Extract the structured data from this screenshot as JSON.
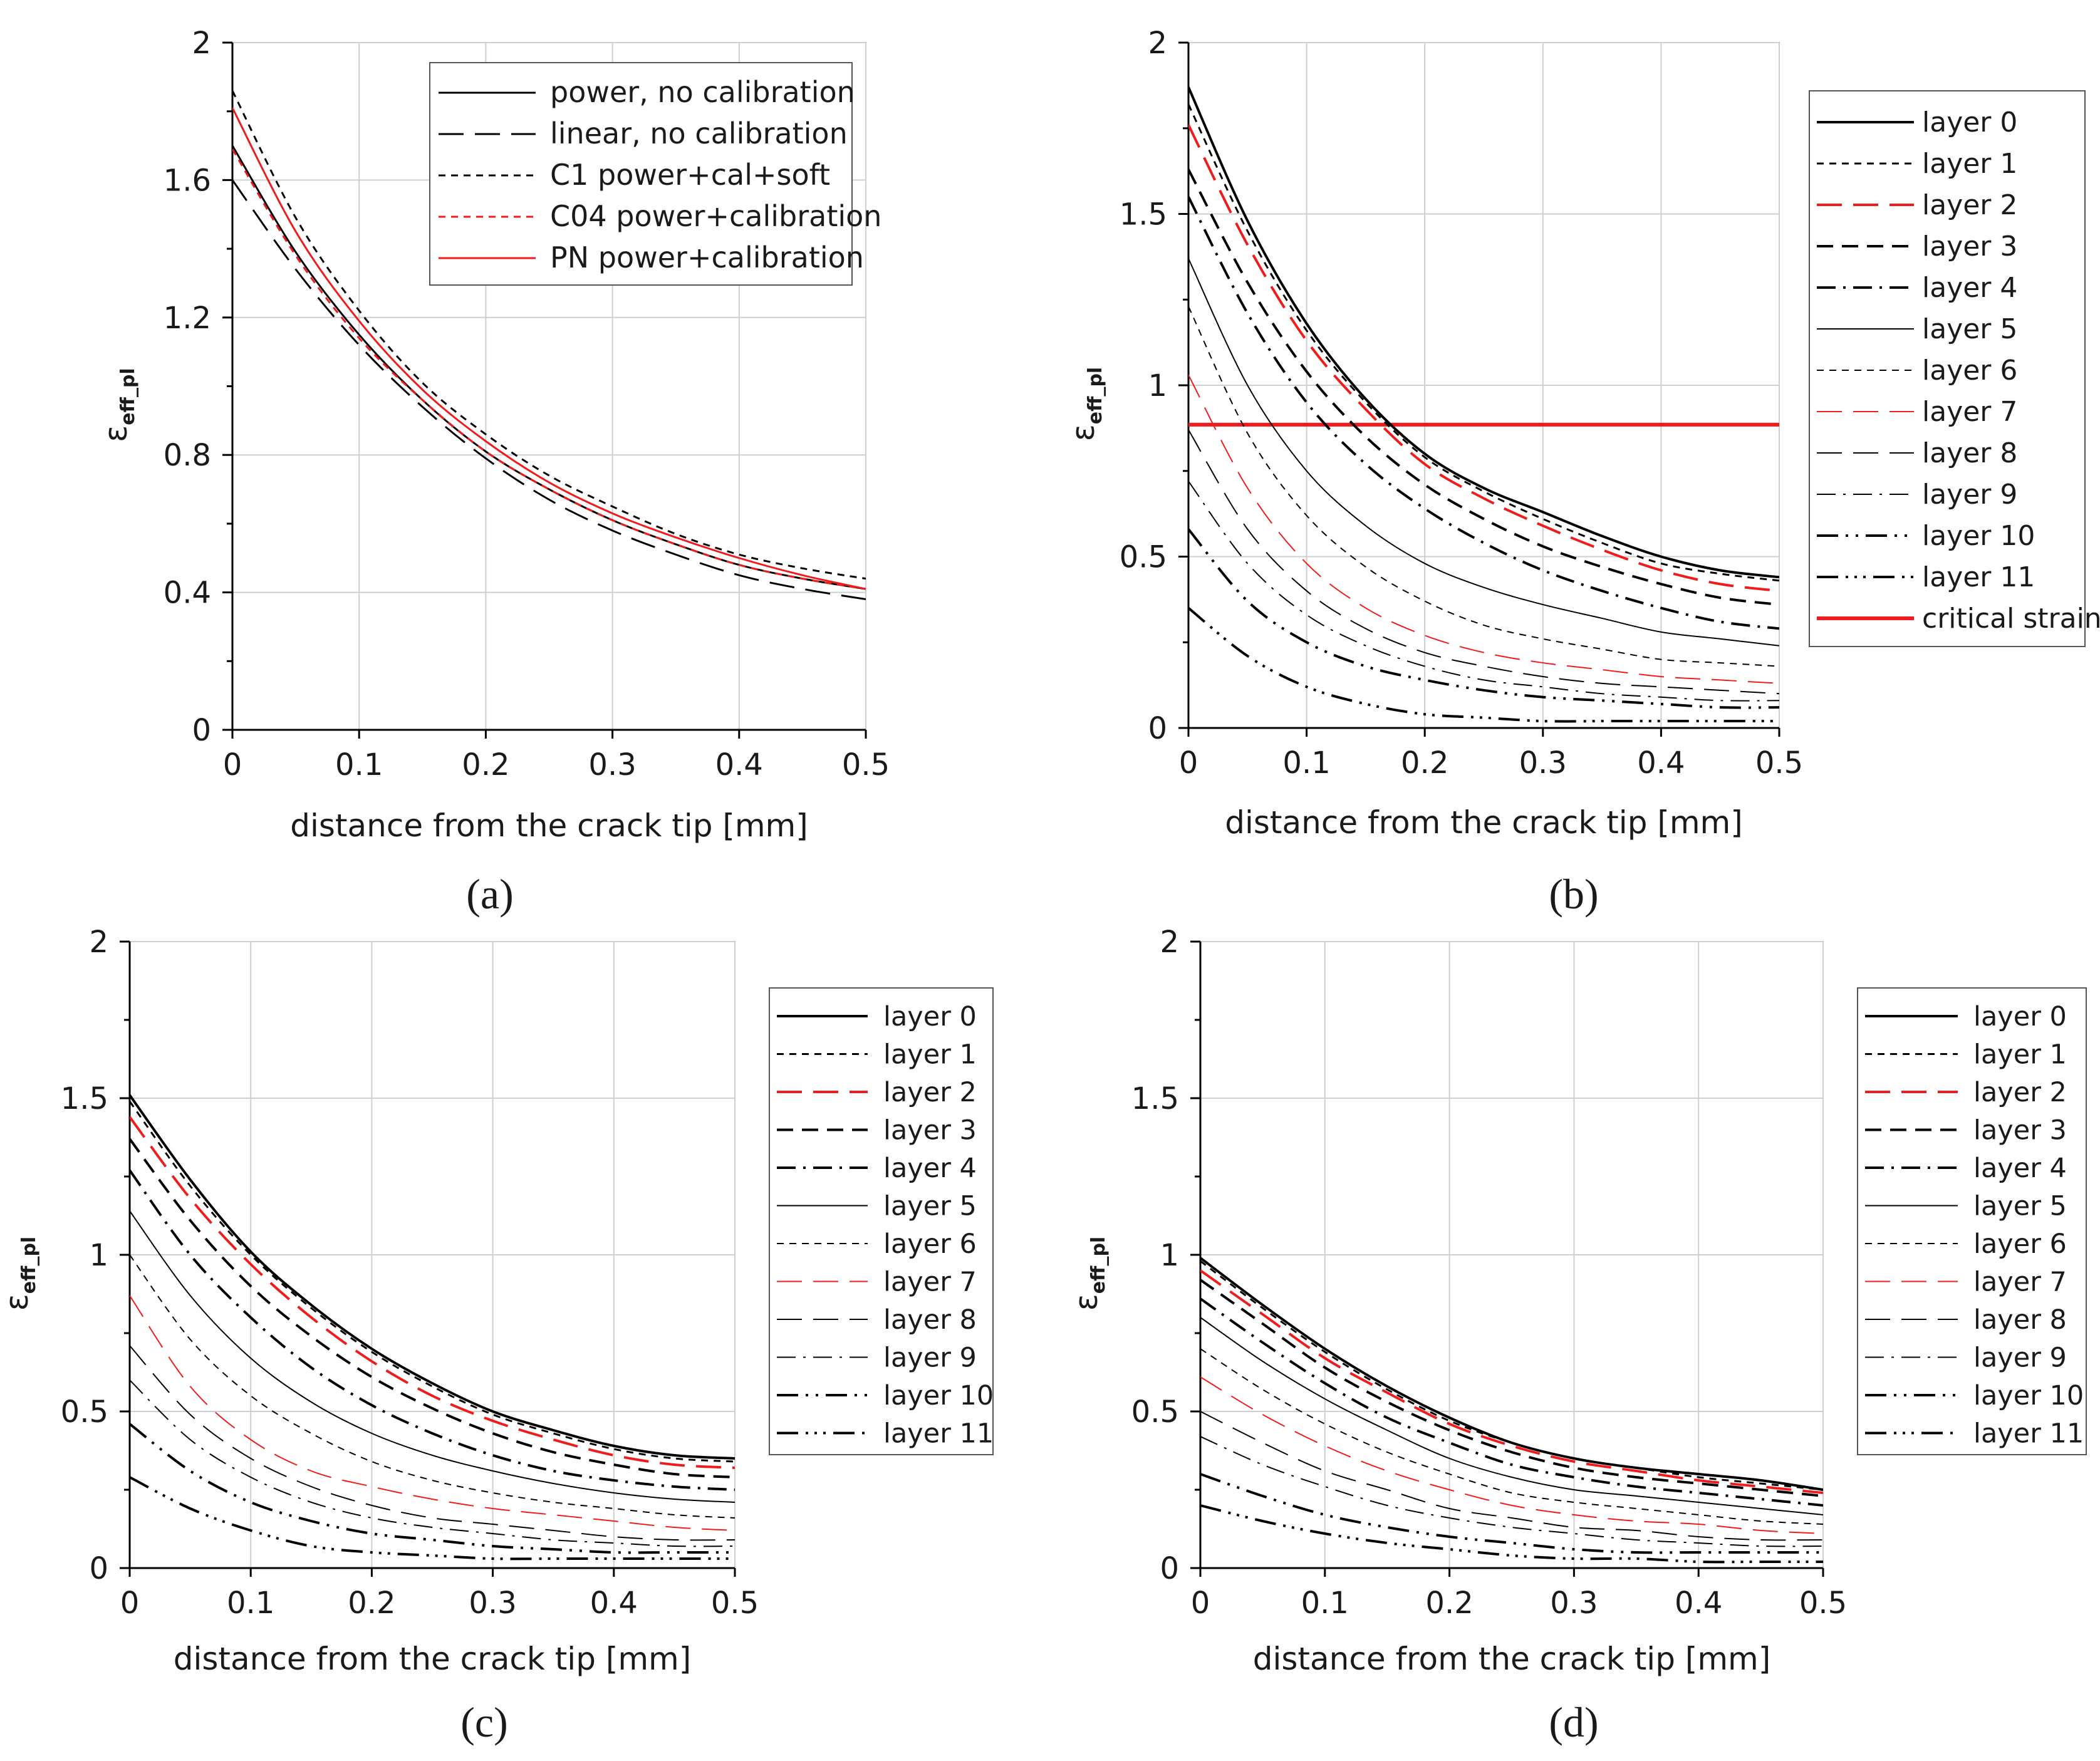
{
  "figure_title": "",
  "colors": {
    "black": "#000000",
    "red": "#ee1c1c",
    "grid": "#cfcfcf"
  },
  "chart_data": [
    {
      "panel": "a",
      "panel_label": "(a)",
      "type": "line",
      "xlabel": "distance from the crack tip [mm]",
      "ylabel_main": "ε",
      "ylabel_sub": "eff_pl",
      "xlim": [
        0,
        0.5
      ],
      "ylim": [
        0,
        2
      ],
      "xticks": [
        0,
        0.1,
        0.2,
        0.3,
        0.4,
        0.5
      ],
      "xtick_labels": [
        "0",
        "0.1",
        "0.2",
        "0.3",
        "0.4",
        "0.5"
      ],
      "yticks": [
        0,
        0.4,
        0.8,
        1.2,
        1.6,
        2
      ],
      "ytick_labels": [
        "0",
        "0.4",
        "0.8",
        "1.2",
        "1.6",
        "2"
      ],
      "legend_position": "top-right-inside",
      "x": [
        0,
        0.05,
        0.1,
        0.15,
        0.2,
        0.25,
        0.3,
        0.35,
        0.4,
        0.45,
        0.5
      ],
      "series": [
        {
          "name": "power, no calibration",
          "color": "#000000",
          "style": "solid",
          "weight": 3,
          "values": [
            1.7,
            1.39,
            1.15,
            0.96,
            0.81,
            0.7,
            0.61,
            0.54,
            0.48,
            0.44,
            0.41
          ]
        },
        {
          "name": "linear, no calibration",
          "color": "#000000",
          "style": "longdash",
          "weight": 3,
          "values": [
            1.6,
            1.34,
            1.12,
            0.94,
            0.79,
            0.67,
            0.58,
            0.51,
            0.45,
            0.41,
            0.38
          ]
        },
        {
          "name": "C1 power+cal+soft",
          "color": "#000000",
          "style": "shortdash",
          "weight": 3,
          "values": [
            1.86,
            1.49,
            1.22,
            1.01,
            0.86,
            0.74,
            0.65,
            0.57,
            0.51,
            0.47,
            0.44
          ]
        },
        {
          "name": "C04 power+calibration",
          "color": "#ee1c1c",
          "style": "shortdash",
          "weight": 3,
          "values": [
            1.69,
            1.38,
            1.14,
            0.96,
            0.81,
            0.7,
            0.61,
            0.54,
            0.48,
            0.44,
            0.41
          ]
        },
        {
          "name": "PN power+calibration",
          "color": "#ee1c1c",
          "style": "solid",
          "weight": 3,
          "values": [
            1.81,
            1.45,
            1.19,
            0.99,
            0.84,
            0.72,
            0.63,
            0.56,
            0.5,
            0.45,
            0.41
          ]
        }
      ]
    },
    {
      "panel": "b",
      "panel_label": "(b)",
      "type": "line",
      "xlabel": "distance from the crack tip [mm]",
      "ylabel_main": "ε",
      "ylabel_sub": "eff_pl",
      "xlim": [
        0,
        0.5
      ],
      "ylim": [
        0,
        2
      ],
      "xticks": [
        0,
        0.1,
        0.2,
        0.3,
        0.4,
        0.5
      ],
      "xtick_labels": [
        "0",
        "0.1",
        "0.2",
        "0.3",
        "0.4",
        "0.5"
      ],
      "yticks": [
        0,
        0.5,
        1,
        1.5,
        2
      ],
      "ytick_labels": [
        "0",
        "0.5",
        "1",
        "1.5",
        "2"
      ],
      "legend_position": "right-outside",
      "x": [
        0,
        0.05,
        0.1,
        0.15,
        0.2,
        0.25,
        0.3,
        0.35,
        0.4,
        0.45,
        0.5
      ],
      "series": [
        {
          "name": "layer 0",
          "color": "#000000",
          "style": "solid",
          "weight": 4,
          "values": [
            1.87,
            1.48,
            1.18,
            0.96,
            0.8,
            0.7,
            0.63,
            0.56,
            0.5,
            0.46,
            0.44
          ]
        },
        {
          "name": "layer 1",
          "color": "#000000",
          "style": "shortdash",
          "weight": 3,
          "values": [
            1.82,
            1.45,
            1.16,
            0.95,
            0.79,
            0.69,
            0.61,
            0.54,
            0.48,
            0.45,
            0.43
          ]
        },
        {
          "name": "layer 2",
          "color": "#ee1c1c",
          "style": "longdash",
          "weight": 4,
          "values": [
            1.76,
            1.41,
            1.13,
            0.93,
            0.77,
            0.67,
            0.59,
            0.52,
            0.46,
            0.42,
            0.4
          ]
        },
        {
          "name": "layer 3",
          "color": "#000000",
          "style": "dash",
          "weight": 4,
          "values": [
            1.63,
            1.3,
            1.04,
            0.85,
            0.71,
            0.61,
            0.53,
            0.47,
            0.42,
            0.38,
            0.36
          ]
        },
        {
          "name": "layer 4",
          "color": "#000000",
          "style": "dashdot",
          "weight": 4,
          "values": [
            1.55,
            1.21,
            0.95,
            0.77,
            0.64,
            0.54,
            0.46,
            0.4,
            0.35,
            0.31,
            0.29
          ]
        },
        {
          "name": "layer 5",
          "color": "#000000",
          "style": "solid",
          "weight": 2,
          "values": [
            1.37,
            1.0,
            0.75,
            0.59,
            0.48,
            0.41,
            0.36,
            0.32,
            0.28,
            0.26,
            0.24
          ]
        },
        {
          "name": "layer 6",
          "color": "#000000",
          "style": "shortdash",
          "weight": 2,
          "values": [
            1.23,
            0.86,
            0.62,
            0.47,
            0.37,
            0.3,
            0.26,
            0.23,
            0.2,
            0.19,
            0.18
          ]
        },
        {
          "name": "layer 7",
          "color": "#ee1c1c",
          "style": "longdash",
          "weight": 2,
          "values": [
            1.03,
            0.7,
            0.48,
            0.35,
            0.27,
            0.22,
            0.19,
            0.17,
            0.15,
            0.14,
            0.13
          ]
        },
        {
          "name": "layer 8",
          "color": "#000000",
          "style": "longdash",
          "weight": 2,
          "values": [
            0.87,
            0.58,
            0.4,
            0.29,
            0.22,
            0.18,
            0.15,
            0.13,
            0.12,
            0.11,
            0.1
          ]
        },
        {
          "name": "layer 9",
          "color": "#000000",
          "style": "dashdot",
          "weight": 2,
          "values": [
            0.72,
            0.48,
            0.33,
            0.24,
            0.18,
            0.14,
            0.12,
            0.1,
            0.09,
            0.08,
            0.08
          ]
        },
        {
          "name": "layer 10",
          "color": "#000000",
          "style": "dashdotdot",
          "weight": 4,
          "values": [
            0.58,
            0.37,
            0.25,
            0.18,
            0.14,
            0.11,
            0.09,
            0.08,
            0.07,
            0.06,
            0.06
          ]
        },
        {
          "name": "layer 11",
          "color": "#000000",
          "style": "dashdotdotdot",
          "weight": 4,
          "values": [
            0.35,
            0.21,
            0.12,
            0.07,
            0.04,
            0.03,
            0.02,
            0.02,
            0.02,
            0.02,
            0.02
          ]
        }
      ],
      "reference_line": {
        "name": "critical strain",
        "color": "#ee1c1c",
        "value": 0.885
      }
    },
    {
      "panel": "c",
      "panel_label": "(c)",
      "type": "line",
      "xlabel": "distance from the crack tip [mm]",
      "ylabel_main": "ε",
      "ylabel_sub": "eff_pl",
      "xlim": [
        0,
        0.5
      ],
      "ylim": [
        0,
        2
      ],
      "xticks": [
        0,
        0.1,
        0.2,
        0.3,
        0.4,
        0.5
      ],
      "xtick_labels": [
        "0",
        "0.1",
        "0.2",
        "0.3",
        "0.4",
        "0.5"
      ],
      "yticks": [
        0,
        0.5,
        1,
        1.5,
        2
      ],
      "ytick_labels": [
        "0",
        "0.5",
        "1",
        "1.5",
        "2"
      ],
      "legend_position": "right-outside",
      "x": [
        0,
        0.05,
        0.1,
        0.15,
        0.2,
        0.25,
        0.3,
        0.35,
        0.4,
        0.45,
        0.5
      ],
      "series": [
        {
          "name": "layer 0",
          "color": "#000000",
          "style": "solid",
          "weight": 4,
          "values": [
            1.51,
            1.24,
            1.01,
            0.84,
            0.7,
            0.59,
            0.5,
            0.44,
            0.39,
            0.36,
            0.35
          ]
        },
        {
          "name": "layer 1",
          "color": "#000000",
          "style": "shortdash",
          "weight": 3,
          "values": [
            1.49,
            1.22,
            1.0,
            0.83,
            0.69,
            0.58,
            0.49,
            0.43,
            0.38,
            0.35,
            0.34
          ]
        },
        {
          "name": "layer 2",
          "color": "#ee1c1c",
          "style": "longdash",
          "weight": 4,
          "values": [
            1.44,
            1.18,
            0.97,
            0.8,
            0.66,
            0.55,
            0.47,
            0.41,
            0.36,
            0.33,
            0.32
          ]
        },
        {
          "name": "layer 3",
          "color": "#000000",
          "style": "dash",
          "weight": 4,
          "values": [
            1.37,
            1.11,
            0.9,
            0.74,
            0.61,
            0.51,
            0.43,
            0.37,
            0.33,
            0.3,
            0.29
          ]
        },
        {
          "name": "layer 4",
          "color": "#000000",
          "style": "dashdot",
          "weight": 4,
          "values": [
            1.27,
            1.0,
            0.8,
            0.64,
            0.52,
            0.43,
            0.36,
            0.31,
            0.28,
            0.26,
            0.25
          ]
        },
        {
          "name": "layer 5",
          "color": "#000000",
          "style": "solid",
          "weight": 2,
          "values": [
            1.14,
            0.87,
            0.67,
            0.53,
            0.43,
            0.36,
            0.31,
            0.27,
            0.24,
            0.22,
            0.21
          ]
        },
        {
          "name": "layer 6",
          "color": "#000000",
          "style": "shortdash",
          "weight": 2,
          "values": [
            1.0,
            0.73,
            0.55,
            0.43,
            0.34,
            0.28,
            0.24,
            0.21,
            0.19,
            0.17,
            0.16
          ]
        },
        {
          "name": "layer 7",
          "color": "#ee1c1c",
          "style": "longdash",
          "weight": 2,
          "values": [
            0.87,
            0.58,
            0.41,
            0.31,
            0.26,
            0.22,
            0.19,
            0.17,
            0.15,
            0.13,
            0.12
          ]
        },
        {
          "name": "layer 8",
          "color": "#000000",
          "style": "longdash",
          "weight": 2,
          "values": [
            0.71,
            0.49,
            0.35,
            0.26,
            0.2,
            0.16,
            0.14,
            0.12,
            0.1,
            0.09,
            0.09
          ]
        },
        {
          "name": "layer 9",
          "color": "#000000",
          "style": "dashdot",
          "weight": 2,
          "values": [
            0.6,
            0.41,
            0.29,
            0.21,
            0.16,
            0.13,
            0.11,
            0.09,
            0.08,
            0.07,
            0.07
          ]
        },
        {
          "name": "layer 10",
          "color": "#000000",
          "style": "dashdotdot",
          "weight": 4,
          "values": [
            0.46,
            0.31,
            0.21,
            0.15,
            0.11,
            0.09,
            0.07,
            0.06,
            0.05,
            0.05,
            0.05
          ]
        },
        {
          "name": "layer 11",
          "color": "#000000",
          "style": "dashdotdotdot",
          "weight": 4,
          "values": [
            0.29,
            0.19,
            0.12,
            0.07,
            0.05,
            0.04,
            0.03,
            0.03,
            0.03,
            0.03,
            0.03
          ]
        }
      ]
    },
    {
      "panel": "d",
      "panel_label": "(d)",
      "type": "line",
      "xlabel": "distance from the crack tip [mm]",
      "ylabel_main": "ε",
      "ylabel_sub": "eff_pl",
      "xlim": [
        0,
        0.5
      ],
      "ylim": [
        0,
        2
      ],
      "xticks": [
        0,
        0.1,
        0.2,
        0.3,
        0.4,
        0.5
      ],
      "xtick_labels": [
        "0",
        "0.1",
        "0.2",
        "0.3",
        "0.4",
        "0.5"
      ],
      "yticks": [
        0,
        0.5,
        1,
        1.5,
        2
      ],
      "ytick_labels": [
        "0",
        "0.5",
        "1",
        "1.5",
        "2"
      ],
      "legend_position": "right-outside",
      "x": [
        0,
        0.05,
        0.1,
        0.15,
        0.2,
        0.25,
        0.3,
        0.35,
        0.4,
        0.45,
        0.5
      ],
      "series": [
        {
          "name": "layer 0",
          "color": "#000000",
          "style": "solid",
          "weight": 4,
          "values": [
            0.99,
            0.84,
            0.7,
            0.58,
            0.48,
            0.4,
            0.35,
            0.32,
            0.3,
            0.28,
            0.25
          ]
        },
        {
          "name": "layer 1",
          "color": "#000000",
          "style": "shortdash",
          "weight": 3,
          "values": [
            0.98,
            0.83,
            0.69,
            0.57,
            0.47,
            0.4,
            0.35,
            0.32,
            0.29,
            0.27,
            0.25
          ]
        },
        {
          "name": "layer 2",
          "color": "#ee1c1c",
          "style": "longdash",
          "weight": 4,
          "values": [
            0.95,
            0.81,
            0.67,
            0.56,
            0.46,
            0.39,
            0.34,
            0.31,
            0.28,
            0.26,
            0.24
          ]
        },
        {
          "name": "layer 3",
          "color": "#000000",
          "style": "dash",
          "weight": 4,
          "values": [
            0.92,
            0.78,
            0.64,
            0.53,
            0.44,
            0.37,
            0.32,
            0.29,
            0.27,
            0.25,
            0.23
          ]
        },
        {
          "name": "layer 4",
          "color": "#000000",
          "style": "dashdot",
          "weight": 4,
          "values": [
            0.86,
            0.72,
            0.59,
            0.48,
            0.4,
            0.33,
            0.29,
            0.26,
            0.24,
            0.22,
            0.2
          ]
        },
        {
          "name": "layer 5",
          "color": "#000000",
          "style": "solid",
          "weight": 2,
          "values": [
            0.8,
            0.66,
            0.54,
            0.44,
            0.35,
            0.29,
            0.25,
            0.23,
            0.21,
            0.19,
            0.17
          ]
        },
        {
          "name": "layer 6",
          "color": "#000000",
          "style": "shortdash",
          "weight": 2,
          "values": [
            0.7,
            0.57,
            0.46,
            0.37,
            0.3,
            0.24,
            0.21,
            0.19,
            0.17,
            0.15,
            0.14
          ]
        },
        {
          "name": "layer 7",
          "color": "#ee1c1c",
          "style": "longdash",
          "weight": 2,
          "values": [
            0.61,
            0.49,
            0.39,
            0.31,
            0.25,
            0.2,
            0.17,
            0.15,
            0.14,
            0.12,
            0.11
          ]
        },
        {
          "name": "layer 8",
          "color": "#000000",
          "style": "longdash",
          "weight": 2,
          "values": [
            0.5,
            0.4,
            0.31,
            0.25,
            0.19,
            0.16,
            0.13,
            0.12,
            0.1,
            0.09,
            0.09
          ]
        },
        {
          "name": "layer 9",
          "color": "#000000",
          "style": "dashdot",
          "weight": 2,
          "values": [
            0.42,
            0.33,
            0.26,
            0.2,
            0.16,
            0.13,
            0.11,
            0.09,
            0.08,
            0.07,
            0.07
          ]
        },
        {
          "name": "layer 10",
          "color": "#000000",
          "style": "dashdotdot",
          "weight": 4,
          "values": [
            0.3,
            0.23,
            0.17,
            0.13,
            0.1,
            0.08,
            0.06,
            0.05,
            0.05,
            0.05,
            0.05
          ]
        },
        {
          "name": "layer 11",
          "color": "#000000",
          "style": "dashdotdotdot",
          "weight": 4,
          "values": [
            0.2,
            0.15,
            0.11,
            0.08,
            0.06,
            0.04,
            0.03,
            0.03,
            0.02,
            0.02,
            0.02
          ]
        }
      ]
    }
  ]
}
